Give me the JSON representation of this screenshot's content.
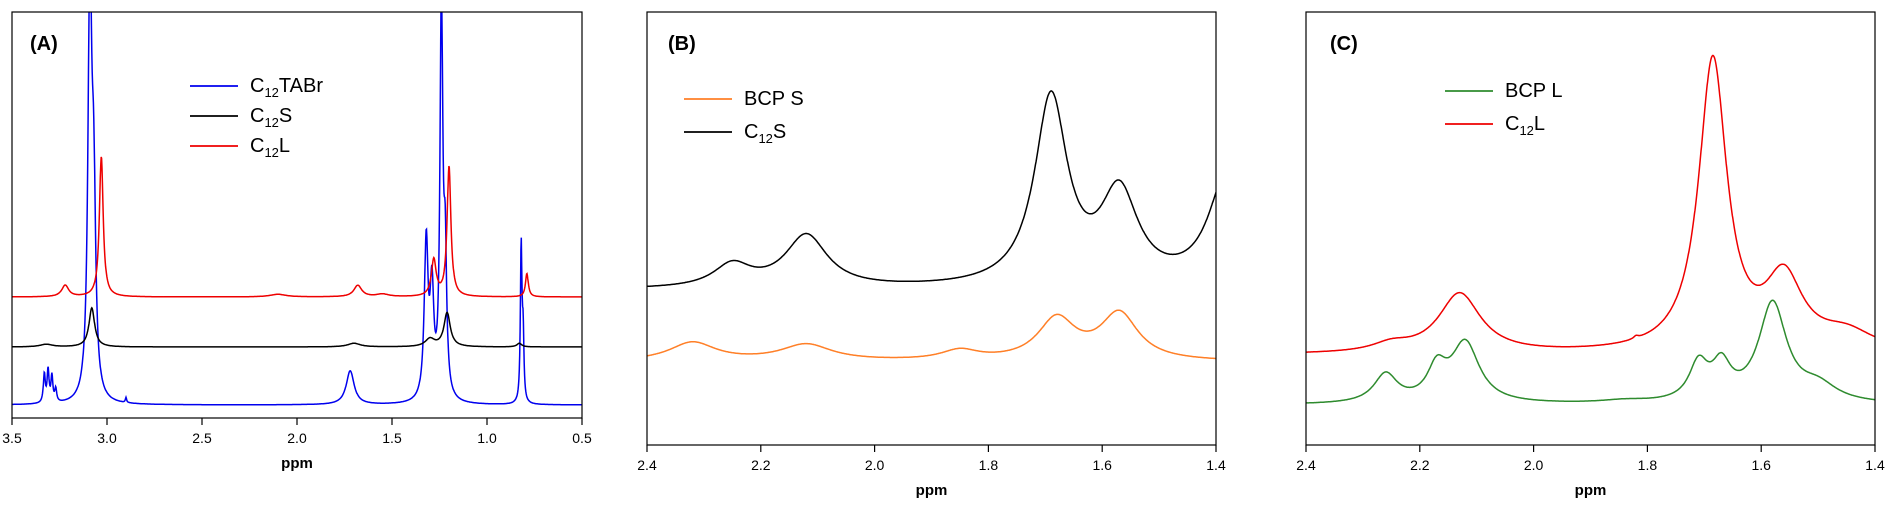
{
  "chart_data": [
    {
      "type": "line",
      "panel_label": "(A)",
      "xlabel": "ppm",
      "xlim": [
        3.5,
        0.5
      ],
      "x_ticks": [
        "3.5",
        "3.0",
        "2.5",
        "2.0",
        "1.5",
        "1.0",
        "0.5"
      ],
      "y_axis_ticks": "none",
      "legend_position": "top-center",
      "series": [
        {
          "name": "C12TABr",
          "legend": {
            "prefix": "C",
            "sub": "12",
            "suffix": "TABr"
          },
          "color": "#0000ee",
          "baseline": 0,
          "peaks": [
            [
              3.33,
              0.55,
              0.006
            ],
            [
              3.31,
              0.62,
              0.006
            ],
            [
              3.29,
              0.5,
              0.006
            ],
            [
              3.27,
              0.25,
              0.006
            ],
            [
              3.09,
              8.0,
              0.012
            ],
            [
              3.07,
              3.5,
              0.012
            ],
            [
              2.9,
              0.1,
              0.004
            ],
            [
              1.72,
              0.65,
              0.025
            ],
            [
              1.32,
              3.0,
              0.012
            ],
            [
              1.29,
              2.0,
              0.012
            ],
            [
              1.24,
              7.5,
              0.009
            ],
            [
              1.22,
              2.5,
              0.009
            ],
            [
              0.82,
              3.0,
              0.005
            ],
            [
              0.81,
              1.2,
              0.005
            ]
          ]
        },
        {
          "name": "C12S",
          "legend": {
            "prefix": "C",
            "sub": "12",
            "suffix": "S"
          },
          "color": "#000000",
          "baseline": 1,
          "peaks": [
            [
              3.32,
              0.05,
              0.04
            ],
            [
              3.08,
              0.75,
              0.018
            ],
            [
              1.7,
              0.07,
              0.04
            ],
            [
              1.3,
              0.15,
              0.03
            ],
            [
              1.21,
              0.65,
              0.02
            ],
            [
              0.83,
              0.07,
              0.015
            ]
          ]
        },
        {
          "name": "C12L",
          "legend": {
            "prefix": "C",
            "sub": "12",
            "suffix": "L"
          },
          "color": "#ee0000",
          "baseline": 2,
          "peaks": [
            [
              3.22,
              0.22,
              0.022
            ],
            [
              3.03,
              2.7,
              0.012
            ],
            [
              2.1,
              0.05,
              0.05
            ],
            [
              1.68,
              0.22,
              0.025
            ],
            [
              1.55,
              0.05,
              0.04
            ],
            [
              1.28,
              0.7,
              0.015
            ],
            [
              1.2,
              2.5,
              0.012
            ],
            [
              0.79,
              0.45,
              0.009
            ]
          ]
        }
      ]
    },
    {
      "type": "line",
      "panel_label": "(B)",
      "xlabel": "ppm",
      "xlim": [
        2.4,
        1.4
      ],
      "x_ticks": [
        "2.4",
        "2.2",
        "2.0",
        "1.8",
        "1.6",
        "1.4"
      ],
      "y_axis_ticks": "none",
      "legend_position": "top-left",
      "series": [
        {
          "name": "BCP S",
          "legend": {
            "prefix": "BCP S",
            "sub": "",
            "suffix": ""
          },
          "color": "#ff7f27",
          "baseline": 0,
          "peaks": [
            [
              2.32,
              0.25,
              0.05
            ],
            [
              2.12,
              0.22,
              0.055
            ],
            [
              1.85,
              0.13,
              0.04
            ],
            [
              1.68,
              0.55,
              0.04
            ],
            [
              1.57,
              0.62,
              0.04
            ]
          ]
        },
        {
          "name": "C12S",
          "legend": {
            "prefix": "C",
            "sub": "12",
            "suffix": "S"
          },
          "color": "#000000",
          "baseline": 1,
          "peaks": [
            [
              2.25,
              0.3,
              0.04
            ],
            [
              2.12,
              0.7,
              0.045
            ],
            [
              1.69,
              2.5,
              0.035
            ],
            [
              1.57,
              1.2,
              0.04
            ],
            [
              1.38,
              1.5,
              0.04
            ]
          ]
        }
      ]
    },
    {
      "type": "line",
      "panel_label": "(C)",
      "xlabel": "ppm",
      "xlim": [
        2.4,
        1.4
      ],
      "x_ticks": [
        "2.4",
        "2.2",
        "2.0",
        "1.8",
        "1.6",
        "1.4"
      ],
      "y_axis_ticks": "none",
      "legend_position": "top-center",
      "series": [
        {
          "name": "BCP L",
          "legend": {
            "prefix": "BCP L",
            "sub": "",
            "suffix": ""
          },
          "color": "#2e8b2e",
          "baseline": 0,
          "peaks": [
            [
              2.26,
              0.55,
              0.025
            ],
            [
              2.17,
              0.6,
              0.02
            ],
            [
              2.12,
              1.15,
              0.03
            ],
            [
              1.84,
              0.05,
              0.05
            ],
            [
              1.71,
              0.7,
              0.02
            ],
            [
              1.67,
              0.65,
              0.02
            ],
            [
              1.58,
              1.9,
              0.03
            ],
            [
              1.5,
              0.3,
              0.04
            ]
          ]
        },
        {
          "name": "C12L",
          "legend": {
            "prefix": "C",
            "sub": "12",
            "suffix": "L"
          },
          "color": "#ee0000",
          "baseline": 1,
          "peaks": [
            [
              2.25,
              0.15,
              0.04
            ],
            [
              2.13,
              1.15,
              0.045
            ],
            [
              1.82,
              0.05,
              0.005
            ],
            [
              1.685,
              5.6,
              0.03
            ],
            [
              1.56,
              1.35,
              0.04
            ],
            [
              1.45,
              0.35,
              0.06
            ]
          ]
        }
      ]
    }
  ]
}
